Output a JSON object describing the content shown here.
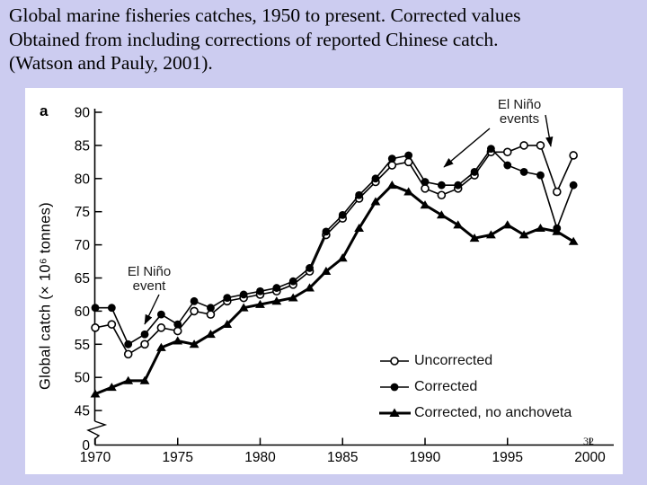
{
  "slide": {
    "title_lines": [
      "Global marine fisheries catches, 1950 to present. Corrected values",
      "Obtained from including corrections of reported Chinese catch.",
      "(Watson and Pauly, 2001)."
    ],
    "page_number": "32",
    "background_color": "#ccccf0"
  },
  "chart_data": {
    "type": "line",
    "panel_label": "a",
    "title": "",
    "xlabel": "",
    "ylabel": "Global catch (× 10⁶ tonnes)",
    "x": [
      1970,
      1971,
      1972,
      1973,
      1974,
      1975,
      1976,
      1977,
      1978,
      1979,
      1980,
      1981,
      1982,
      1983,
      1984,
      1985,
      1986,
      1987,
      1988,
      1989,
      1990,
      1991,
      1992,
      1993,
      1994,
      1995,
      1996,
      1997,
      1998,
      1999
    ],
    "x_ticks": [
      1970,
      1975,
      1980,
      1985,
      1990,
      1995,
      2000
    ],
    "y_ticks": [
      0,
      45,
      50,
      55,
      60,
      65,
      70,
      75,
      80,
      85,
      90
    ],
    "ylim": [
      45,
      90
    ],
    "axis_break_between": [
      0,
      45
    ],
    "grid": false,
    "legend_position": "inside lower right",
    "series": [
      {
        "name": "Uncorrected",
        "marker": "open-circle",
        "line_width": 1.6,
        "values": [
          57.5,
          58,
          53.5,
          55,
          57.5,
          57,
          60,
          59.5,
          61.5,
          62,
          62.5,
          63,
          64,
          66,
          71.5,
          74,
          77,
          79.5,
          82,
          82.5,
          78.5,
          77.5,
          78.5,
          80.5,
          84,
          84,
          85,
          85,
          78,
          83.5
        ]
      },
      {
        "name": "Corrected",
        "marker": "filled-circle",
        "line_width": 1.6,
        "values": [
          60.5,
          60.5,
          55,
          56.5,
          59.5,
          58,
          61.5,
          60.5,
          62,
          62.5,
          63,
          63.5,
          64.5,
          66.5,
          72,
          74.5,
          77.5,
          80,
          83,
          83.5,
          79.5,
          79,
          79,
          81,
          84.5,
          82,
          81,
          80.5,
          72.5,
          79
        ]
      },
      {
        "name": "Corrected, no anchoveta",
        "marker": "filled-triangle",
        "line_width": 3,
        "values": [
          47.5,
          48.5,
          49.5,
          49.5,
          54.5,
          55.5,
          55,
          56.5,
          58,
          60.5,
          61,
          61.5,
          62,
          63.5,
          66,
          68,
          72.5,
          76.5,
          79,
          78,
          76,
          74.5,
          73,
          71,
          71.5,
          73,
          71.5,
          72.5,
          72,
          70.5
        ]
      }
    ],
    "annotations": [
      {
        "id": "el-nino-event-1972",
        "text_lines": [
          "El Niño",
          "event"
        ]
      },
      {
        "id": "el-nino-events-1990s",
        "text_lines": [
          "El Niño",
          "events"
        ]
      }
    ]
  }
}
